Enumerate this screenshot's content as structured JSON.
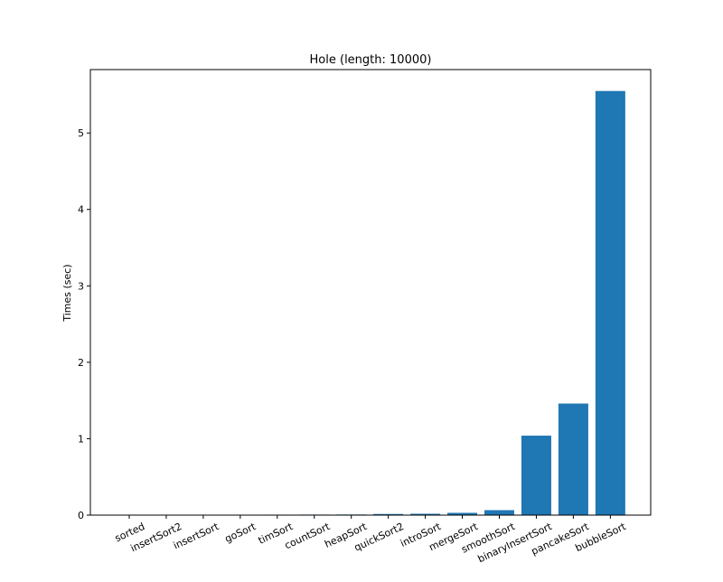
{
  "chart_data": {
    "type": "bar",
    "title": "Hole (length: 10000)",
    "xlabel": "",
    "ylabel": "Times (sec)",
    "categories": [
      "sorted",
      "insertSort2",
      "insertSort",
      "goSort",
      "timSort",
      "countSort",
      "heapSort",
      "quickSort2",
      "introSort",
      "mergeSort",
      "smoothSort",
      "binaryInsertSort",
      "pancakeSort",
      "bubbleSort"
    ],
    "values": [
      0.0,
      0.002,
      0.004,
      0.005,
      0.006,
      0.007,
      0.008,
      0.015,
      0.018,
      0.03,
      0.065,
      1.04,
      1.46,
      5.55
    ],
    "ylim": [
      0,
      5.83
    ],
    "yticks": [
      0,
      1,
      2,
      3,
      4,
      5
    ],
    "grid": false,
    "bar_color": "#1f77b4"
  }
}
